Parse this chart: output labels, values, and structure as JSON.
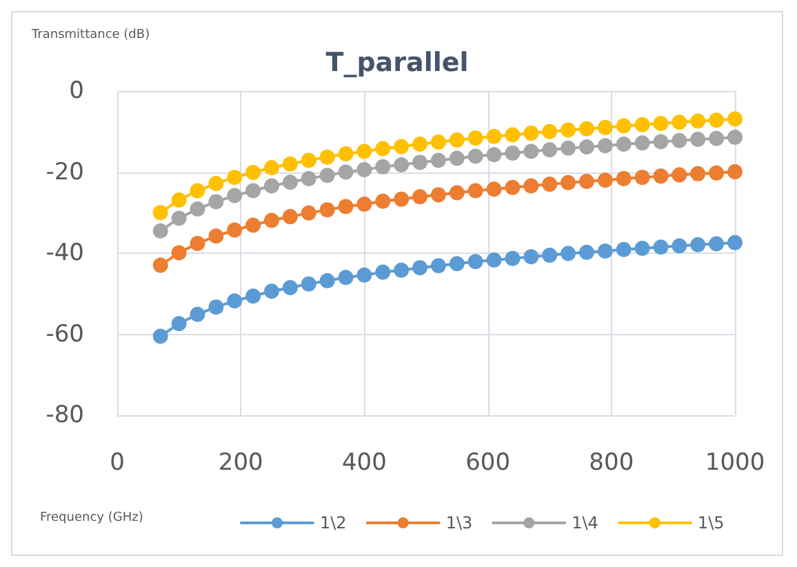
{
  "chart_data": {
    "type": "line",
    "title": "T_parallel",
    "xlabel": "Frequency (GHz)",
    "ylabel": "Transmittance (dB)",
    "x": [
      70,
      100,
      130,
      160,
      190,
      220,
      250,
      280,
      310,
      340,
      370,
      400,
      430,
      460,
      490,
      520,
      550,
      580,
      610,
      640,
      670,
      700,
      730,
      760,
      790,
      820,
      850,
      880,
      910,
      940,
      970,
      1000
    ],
    "series": [
      {
        "name": "1\\2",
        "color": "#5b9bd5",
        "values": [
          -60.5,
          -57.4,
          -55.1,
          -53.3,
          -51.8,
          -50.6,
          -49.4,
          -48.5,
          -47.6,
          -46.8,
          -46.0,
          -45.4,
          -44.7,
          -44.2,
          -43.6,
          -43.1,
          -42.6,
          -42.1,
          -41.7,
          -41.3,
          -40.9,
          -40.5,
          -40.1,
          -39.8,
          -39.5,
          -39.1,
          -38.8,
          -38.5,
          -38.2,
          -37.9,
          -37.7,
          -37.4
        ]
      },
      {
        "name": "1\\3",
        "color": "#ed7d31",
        "values": [
          -43.0,
          -39.9,
          -37.6,
          -35.8,
          -34.3,
          -33.1,
          -31.9,
          -31.0,
          -30.1,
          -29.3,
          -28.5,
          -27.9,
          -27.2,
          -26.7,
          -26.1,
          -25.6,
          -25.1,
          -24.6,
          -24.2,
          -23.8,
          -23.4,
          -23.0,
          -22.6,
          -22.3,
          -22.0,
          -21.6,
          -21.3,
          -21.0,
          -20.7,
          -20.4,
          -20.2,
          -19.9
        ]
      },
      {
        "name": "1\\4",
        "color": "#a5a5a5",
        "values": [
          -34.5,
          -31.4,
          -29.1,
          -27.3,
          -25.8,
          -24.6,
          -23.4,
          -22.5,
          -21.6,
          -20.8,
          -20.0,
          -19.4,
          -18.7,
          -18.2,
          -17.6,
          -17.1,
          -16.6,
          -16.1,
          -15.7,
          -15.3,
          -14.9,
          -14.5,
          -14.1,
          -13.8,
          -13.5,
          -13.1,
          -12.8,
          -12.5,
          -12.2,
          -11.9,
          -11.7,
          -11.4
        ]
      },
      {
        "name": "1\\5",
        "color": "#ffc000",
        "values": [
          -30.0,
          -26.9,
          -24.6,
          -22.8,
          -21.3,
          -20.1,
          -18.9,
          -18.0,
          -17.1,
          -16.3,
          -15.5,
          -14.9,
          -14.2,
          -13.7,
          -13.1,
          -12.6,
          -12.1,
          -11.6,
          -11.2,
          -10.8,
          -10.4,
          -10.0,
          -9.6,
          -9.3,
          -9.0,
          -8.6,
          -8.3,
          -8.0,
          -7.7,
          -7.4,
          -7.2,
          -6.9
        ]
      }
    ],
    "xlim": [
      0,
      1000
    ],
    "xticks": [
      0,
      200,
      400,
      600,
      800,
      1000
    ],
    "ylim": [
      -80,
      0
    ],
    "yticks": [
      -80,
      -60,
      -40,
      -20,
      0
    ],
    "grid": true,
    "legend": "bottom",
    "marker": "circle",
    "line_style": "solid"
  }
}
